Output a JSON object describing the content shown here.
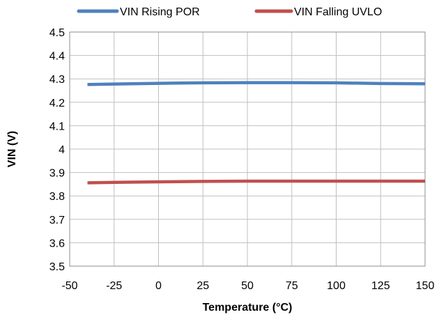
{
  "chart_data": {
    "type": "line",
    "title": "",
    "xlabel": "Temperature (°C)",
    "ylabel": "VIN (V)",
    "xlim": [
      -50,
      150
    ],
    "ylim": [
      3.5,
      4.5
    ],
    "x_ticks": [
      "-50",
      "-25",
      "0",
      "25",
      "50",
      "75",
      "100",
      "125",
      "150"
    ],
    "y_ticks": [
      "4.5",
      "4.4",
      "4.3",
      "4.2",
      "4.1",
      "4",
      "3.9",
      "3.8",
      "3.7",
      "3.6",
      "3.5"
    ],
    "grid": true,
    "legend_position": "top",
    "series": [
      {
        "name": "VIN Rising POR",
        "color": "#4f81bd",
        "x": [
          -40,
          -25,
          0,
          25,
          50,
          75,
          100,
          125,
          150
        ],
        "y": [
          4.276,
          4.278,
          4.281,
          4.283,
          4.284,
          4.284,
          4.283,
          4.28,
          4.279
        ]
      },
      {
        "name": "VIN Falling UVLO",
        "color": "#c0504d",
        "x": [
          -40,
          -25,
          0,
          25,
          50,
          75,
          100,
          125,
          150
        ],
        "y": [
          3.856,
          3.858,
          3.86,
          3.862,
          3.863,
          3.863,
          3.863,
          3.863,
          3.863
        ]
      }
    ]
  }
}
